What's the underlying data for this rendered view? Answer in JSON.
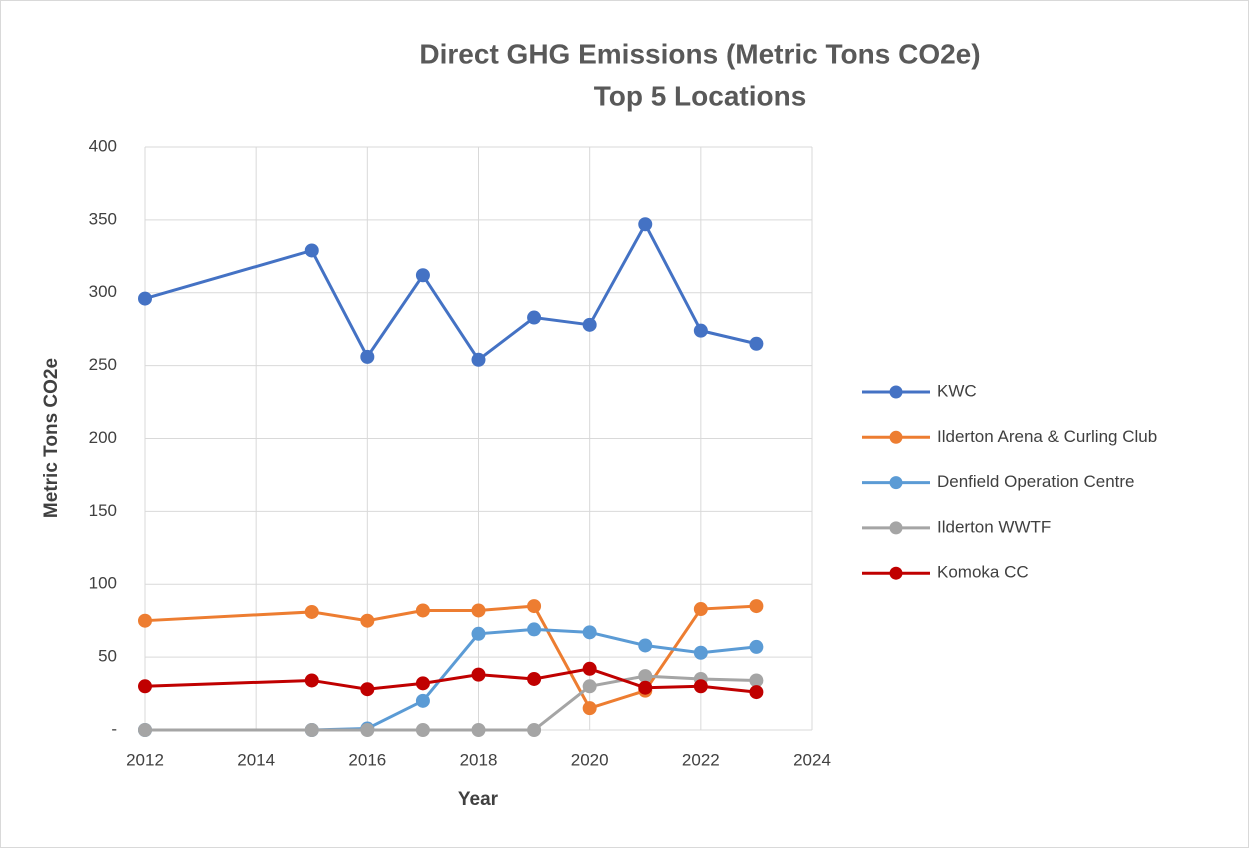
{
  "chart_data": {
    "type": "line",
    "title": "Direct GHG Emissions (Metric Tons CO2e)",
    "subtitle": "Top 5 Locations",
    "x_label": "Year",
    "y_label": "Metric Tons CO2e",
    "x": [
      2012,
      2015,
      2016,
      2017,
      2018,
      2019,
      2020,
      2021,
      2022,
      2023
    ],
    "series": [
      {
        "name": "KWC",
        "color": "#4472c4",
        "values": [
          296,
          329,
          256,
          312,
          254,
          283,
          278,
          347,
          274,
          265
        ]
      },
      {
        "name": "Ilderton Arena & Curling Club",
        "color": "#ed7d31",
        "values": [
          75,
          81,
          75,
          82,
          82,
          85,
          15,
          27,
          83,
          85
        ]
      },
      {
        "name": "Denfield Operation Centre",
        "color": "#5b9bd5",
        "values": [
          0,
          0,
          1,
          20,
          66,
          69,
          67,
          58,
          53,
          57
        ]
      },
      {
        "name": "Ilderton WWTF",
        "color": "#a5a5a5",
        "values": [
          0,
          0,
          0,
          0,
          0,
          0,
          30,
          37,
          35,
          34
        ]
      },
      {
        "name": "Komoka CC",
        "color": "#c00000",
        "values": [
          30,
          34,
          28,
          32,
          38,
          35,
          42,
          29,
          30,
          26
        ]
      }
    ],
    "xlim": [
      2012,
      2024
    ],
    "xticks": [
      2012,
      2014,
      2016,
      2018,
      2020,
      2022,
      2024
    ],
    "ylim": [
      0,
      400
    ],
    "yticks": [
      {
        "value": 0,
        "label": "-"
      },
      50,
      100,
      150,
      200,
      250,
      300,
      350,
      400
    ],
    "grid": true,
    "legend": "right"
  }
}
